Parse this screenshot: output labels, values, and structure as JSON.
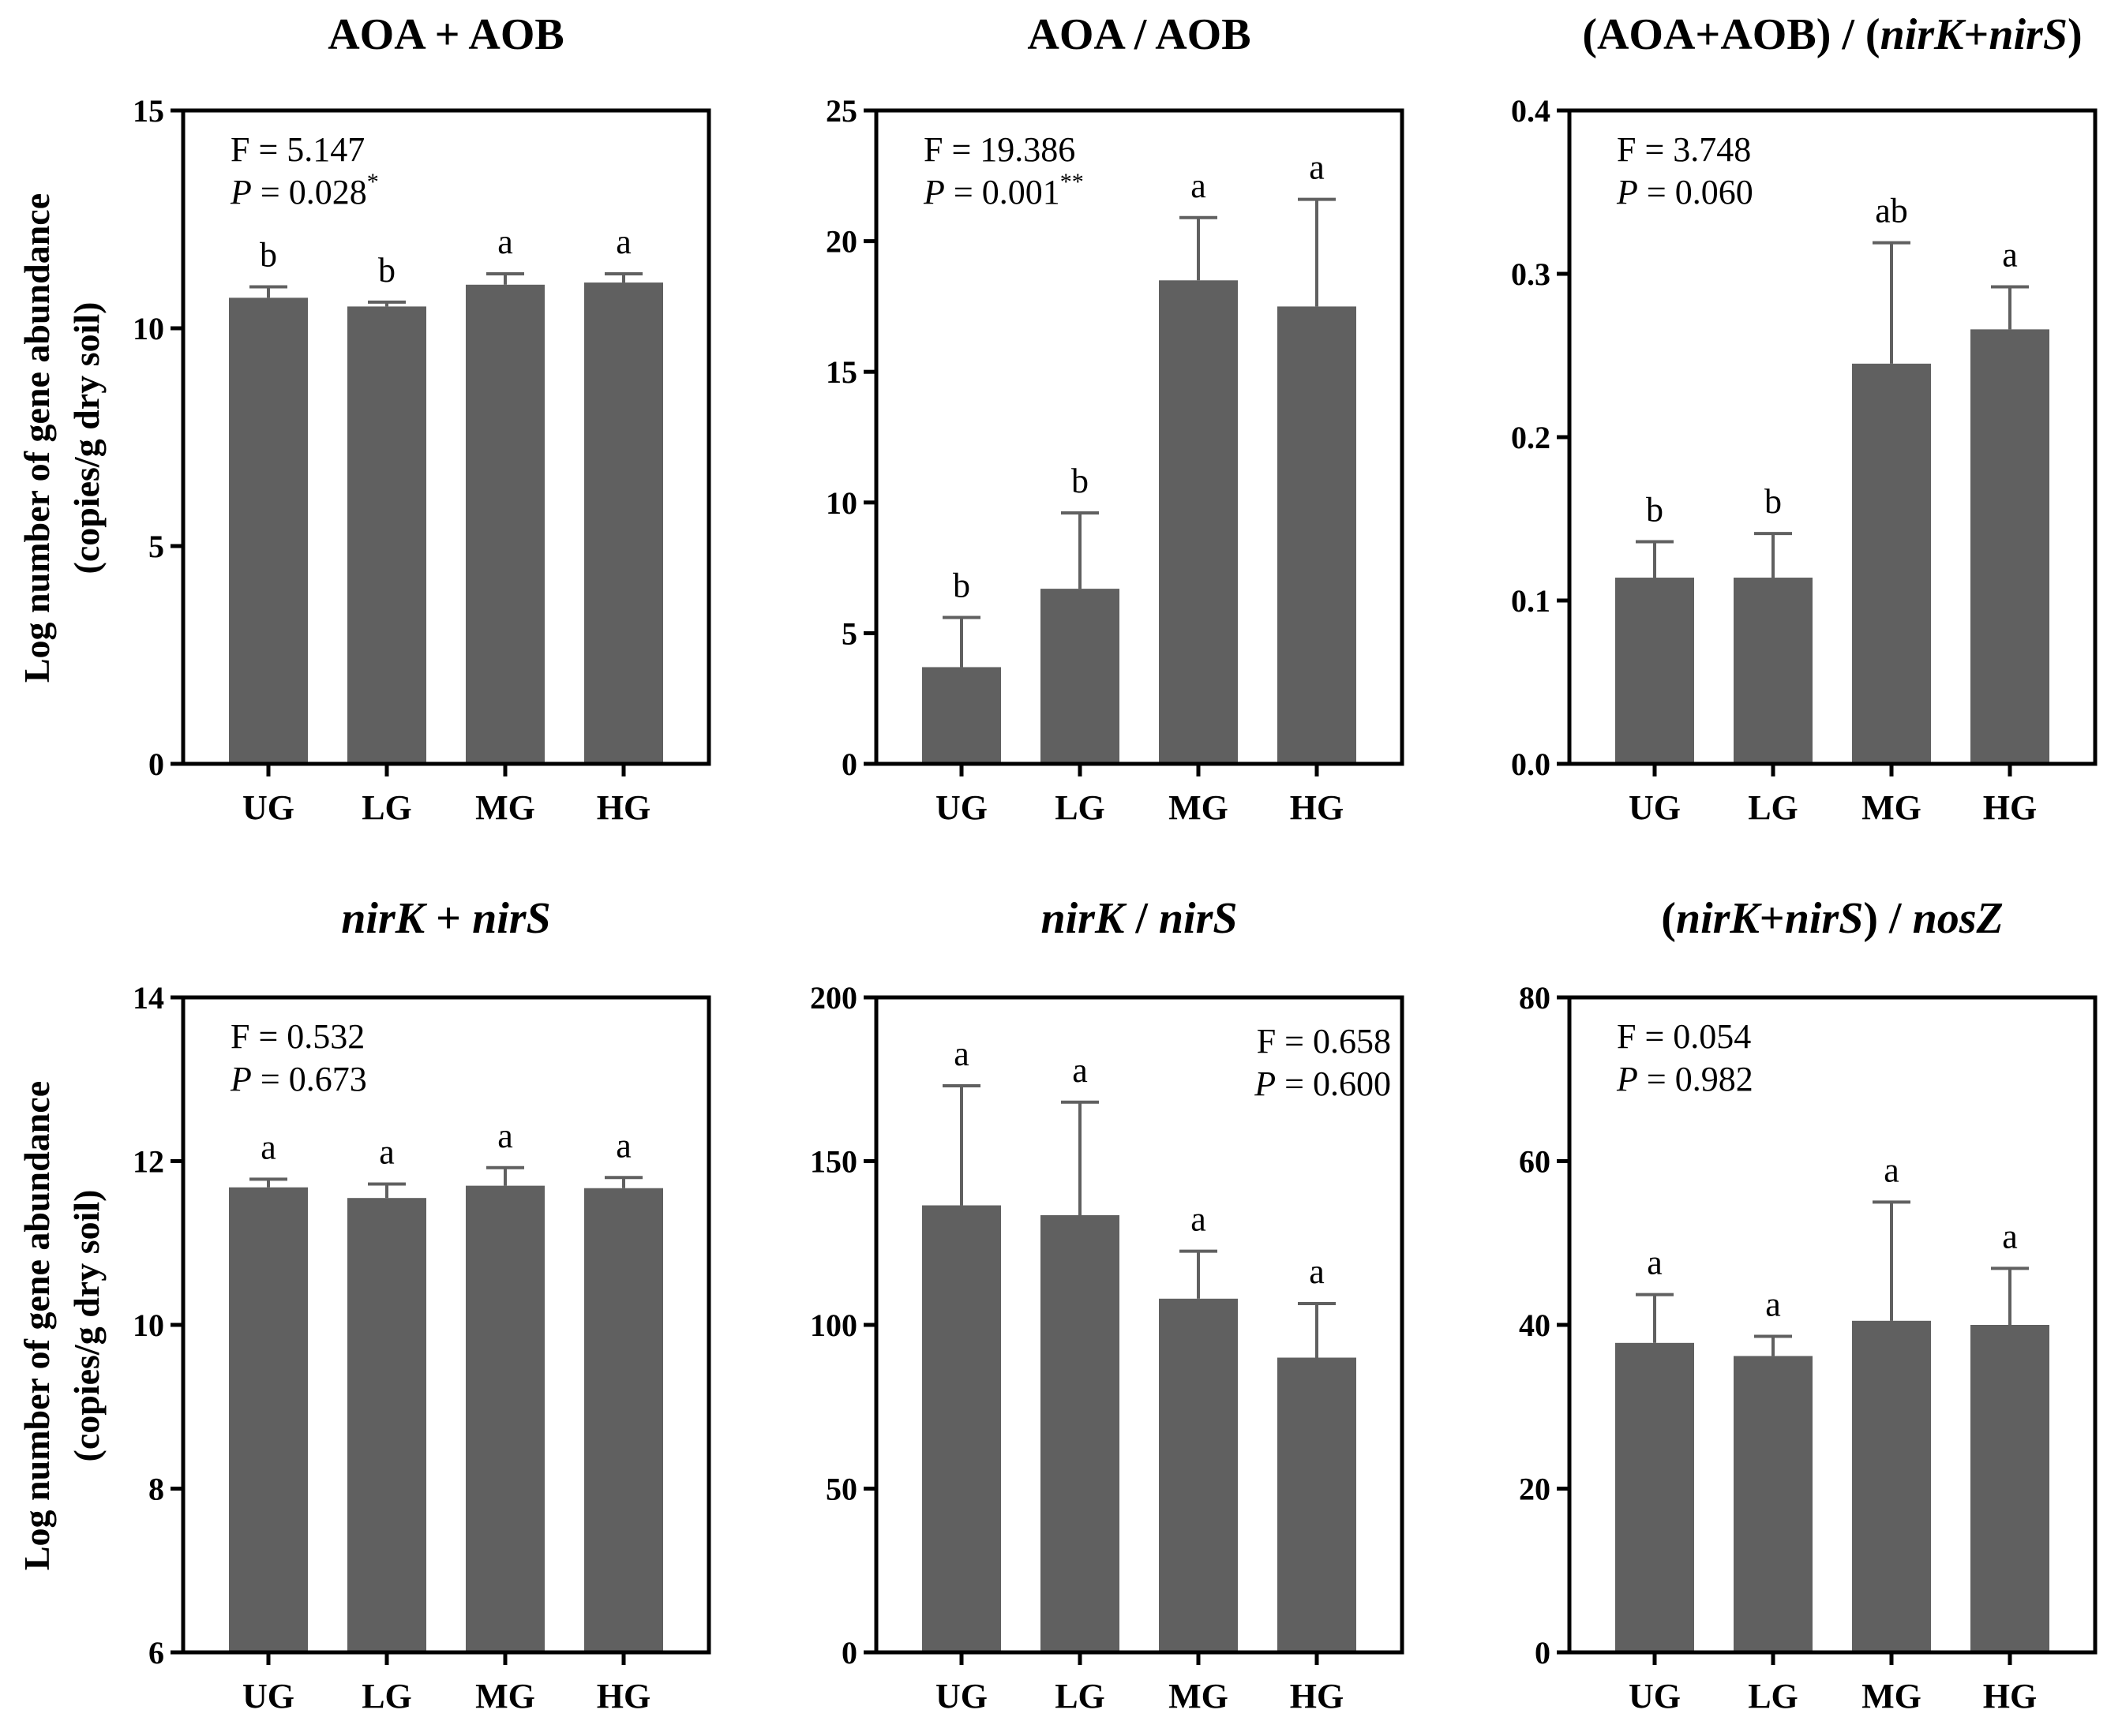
{
  "figure": {
    "ylabel_line1": "Log number of gene abundance",
    "ylabel_line2": "(copies/g dry soil)"
  },
  "colors": {
    "bar": "#606060",
    "axis": "#000000"
  },
  "chart_data": [
    {
      "id": "p0",
      "type": "bar",
      "title": [
        {
          "text": "AOA + AOB",
          "italic": false
        }
      ],
      "categories": [
        "UG",
        "LG",
        "MG",
        "HG"
      ],
      "values": [
        10.7,
        10.5,
        11.0,
        11.05
      ],
      "errors": [
        0.25,
        0.1,
        0.25,
        0.2
      ],
      "letters": [
        "b",
        "b",
        "a",
        "a"
      ],
      "ylim": [
        0,
        15
      ],
      "yticks": [
        "0",
        "5",
        "10",
        "15"
      ],
      "stat_F": "F = 5.147",
      "stat_P_prefix": "P",
      "stat_P_value": " = 0.028",
      "stat_P_sup": "*",
      "stat_align": "left",
      "ylabel": "Log number of gene abundance (copies/g dry soil)"
    },
    {
      "id": "p1",
      "type": "bar",
      "title": [
        {
          "text": "AOA / AOB",
          "italic": false
        }
      ],
      "categories": [
        "UG",
        "LG",
        "MG",
        "HG"
      ],
      "values": [
        3.7,
        6.7,
        18.5,
        17.5
      ],
      "errors": [
        1.9,
        2.9,
        2.4,
        4.1
      ],
      "letters": [
        "b",
        "b",
        "a",
        "a"
      ],
      "ylim": [
        0,
        25
      ],
      "yticks": [
        "0",
        "5",
        "10",
        "15",
        "20",
        "25"
      ],
      "stat_F": "F = 19.386",
      "stat_P_prefix": "P",
      "stat_P_value": " = 0.001",
      "stat_P_sup": "**",
      "stat_align": "left",
      "ylabel": ""
    },
    {
      "id": "p2",
      "type": "bar",
      "title": [
        {
          "text": "(AOA+AOB) / (",
          "italic": false
        },
        {
          "text": "nirK",
          "italic": true
        },
        {
          "text": "+",
          "italic": false
        },
        {
          "text": "nirS",
          "italic": true
        },
        {
          "text": ")",
          "italic": false
        }
      ],
      "categories": [
        "UG",
        "LG",
        "MG",
        "HG"
      ],
      "values": [
        0.114,
        0.114,
        0.245,
        0.266
      ],
      "errors": [
        0.022,
        0.027,
        0.074,
        0.026
      ],
      "letters": [
        "b",
        "b",
        "ab",
        "a"
      ],
      "ylim": [
        0,
        0.4
      ],
      "yticks": [
        "0.0",
        "0.1",
        "0.2",
        "0.3",
        "0.4"
      ],
      "stat_F": "F = 3.748",
      "stat_P_prefix": "P",
      "stat_P_value": " = 0.060",
      "stat_P_sup": "",
      "stat_align": "left",
      "ylabel": ""
    },
    {
      "id": "p3",
      "type": "bar",
      "title": [
        {
          "text": "nirK",
          "italic": true
        },
        {
          "text": " + ",
          "italic": false
        },
        {
          "text": "nirS",
          "italic": true
        }
      ],
      "categories": [
        "UG",
        "LG",
        "MG",
        "HG"
      ],
      "values": [
        11.68,
        11.55,
        11.7,
        11.67
      ],
      "errors": [
        0.1,
        0.17,
        0.22,
        0.13
      ],
      "letters": [
        "a",
        "a",
        "a",
        "a"
      ],
      "ylim": [
        6,
        14
      ],
      "yticks": [
        "6",
        "8",
        "10",
        "12",
        "14"
      ],
      "stat_F": "F = 0.532",
      "stat_P_prefix": "P",
      "stat_P_value": " = 0.673",
      "stat_P_sup": "",
      "stat_align": "left",
      "ylabel": "Log number of gene abundance (copies/g dry soil)"
    },
    {
      "id": "p4",
      "type": "bar",
      "title": [
        {
          "text": "nirK",
          "italic": true
        },
        {
          "text": " / ",
          "italic": false
        },
        {
          "text": "nirS",
          "italic": true
        }
      ],
      "categories": [
        "UG",
        "LG",
        "MG",
        "HG"
      ],
      "values": [
        136.5,
        133.5,
        108.0,
        90.0
      ],
      "errors": [
        36.5,
        34.5,
        14.5,
        16.5
      ],
      "letters": [
        "a",
        "a",
        "a",
        "a"
      ],
      "ylim": [
        0,
        200
      ],
      "yticks": [
        "0",
        "50",
        "100",
        "150",
        "200"
      ],
      "stat_F": "F = 0.658",
      "stat_P_prefix": "P",
      "stat_P_value": " = 0.600",
      "stat_P_sup": "",
      "stat_align": "right",
      "ylabel": ""
    },
    {
      "id": "p5",
      "type": "bar",
      "title": [
        {
          "text": "(",
          "italic": false
        },
        {
          "text": "nirK",
          "italic": true
        },
        {
          "text": "+",
          "italic": false
        },
        {
          "text": "nirS",
          "italic": true
        },
        {
          "text": ") / ",
          "italic": false
        },
        {
          "text": "nosZ",
          "italic": true
        }
      ],
      "categories": [
        "UG",
        "LG",
        "MG",
        "HG"
      ],
      "values": [
        37.8,
        36.2,
        40.5,
        40.0
      ],
      "errors": [
        5.9,
        2.4,
        14.5,
        6.9
      ],
      "letters": [
        "a",
        "a",
        "a",
        "a"
      ],
      "ylim": [
        0,
        80
      ],
      "yticks": [
        "0",
        "20",
        "40",
        "60",
        "80"
      ],
      "stat_F": "F = 0.054",
      "stat_P_prefix": "P",
      "stat_P_value": " = 0.982",
      "stat_P_sup": "",
      "stat_align": "left",
      "ylabel": ""
    }
  ]
}
